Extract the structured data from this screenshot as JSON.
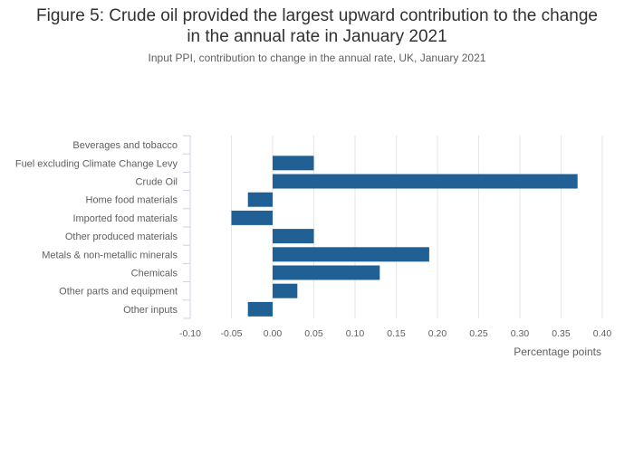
{
  "chart_data": {
    "type": "bar",
    "orientation": "horizontal",
    "title_lines": [
      "Figure 5: Crude oil provided the largest upward contribution to the change",
      "in the annual rate in January 2021"
    ],
    "subtitle": "Input PPI, contribution to change in the annual rate, UK, January 2021",
    "xlabel": "Percentage points",
    "ylabel": "",
    "xlim": [
      -0.1,
      0.4
    ],
    "xticks": [
      -0.1,
      -0.05,
      0,
      0.05,
      0.1,
      0.15,
      0.2,
      0.25,
      0.3,
      0.35,
      0.4
    ],
    "xtick_labels": [
      "-0.10",
      "-0.05",
      "0.00",
      "0.05",
      "0.10",
      "0.15",
      "0.20",
      "0.25",
      "0.30",
      "0.35",
      "0.40"
    ],
    "grid": true,
    "bar_color": "#206095",
    "categories": [
      "Beverages and tobacco",
      "Fuel excluding Climate Change Levy",
      "Crude Oil",
      "Home food materials",
      "Imported food materials",
      "Other produced materials",
      "Metals & non-metallic minerals",
      "Chemicals",
      "Other parts and equipment",
      "Other inputs"
    ],
    "values": [
      0.0,
      0.05,
      0.37,
      -0.03,
      -0.05,
      0.05,
      0.19,
      0.13,
      0.03,
      -0.03
    ]
  }
}
